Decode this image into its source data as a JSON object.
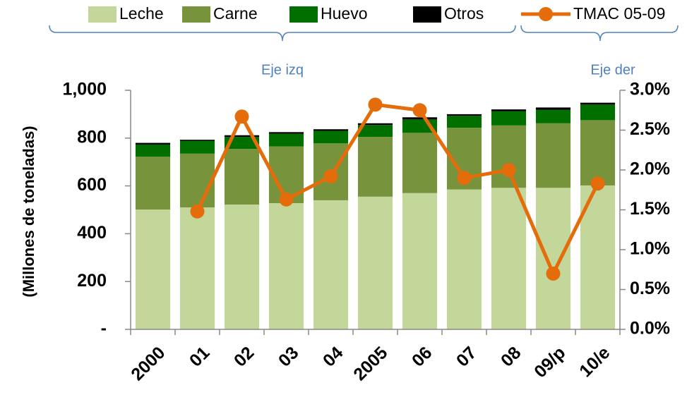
{
  "chart_data": {
    "type": "bar",
    "stacked": true,
    "categories": [
      "2000",
      "01",
      "02",
      "03",
      "04",
      "2005",
      "06",
      "07",
      "08",
      "09/p",
      "10/e"
    ],
    "series": [
      {
        "name": "Leche",
        "color": "#c4d79b",
        "values": [
          501,
          510,
          522,
          528,
          540,
          555,
          570,
          585,
          592,
          592,
          602
        ]
      },
      {
        "name": "Carne",
        "color": "#77933c",
        "values": [
          221,
          225,
          233,
          237,
          238,
          250,
          252,
          258,
          261,
          270,
          273
        ]
      },
      {
        "name": "Huevo",
        "color": "#006f00",
        "values": [
          51,
          53,
          50,
          53,
          52,
          50,
          56,
          50,
          59,
          56,
          65
        ]
      },
      {
        "name": "Otros",
        "color": "#000000",
        "values": [
          7,
          5,
          7,
          7,
          7,
          7,
          9,
          7,
          8,
          10,
          8
        ]
      },
      {
        "name": "TMAC 05-09",
        "color": "#e46c0a",
        "type": "line",
        "axis": "y2",
        "values": [
          null,
          1.48,
          2.67,
          1.63,
          1.92,
          2.82,
          2.75,
          1.9,
          2.0,
          0.7,
          1.83
        ]
      }
    ],
    "ylabel": "(Millones de toneladas)",
    "ylim": [
      0,
      1000
    ],
    "yticks": [
      {
        "value": 0,
        "label": "-"
      },
      200,
      400,
      600,
      800,
      {
        "value": 1000,
        "label": "1,000"
      }
    ],
    "y2lim": [
      0,
      3
    ],
    "y2ticks": [
      {
        "value": 0,
        "label": "0.0%"
      },
      {
        "value": 0.5,
        "label": "0.5%"
      },
      {
        "value": 1,
        "label": "1.0%"
      },
      {
        "value": 1.5,
        "label": "1.5%"
      },
      {
        "value": 2,
        "label": "2.0%"
      },
      {
        "value": 2.5,
        "label": "2.5%"
      },
      {
        "value": 3,
        "label": "3.0%"
      }
    ],
    "annotations": [
      "Eje izq",
      "Eje der"
    ]
  }
}
